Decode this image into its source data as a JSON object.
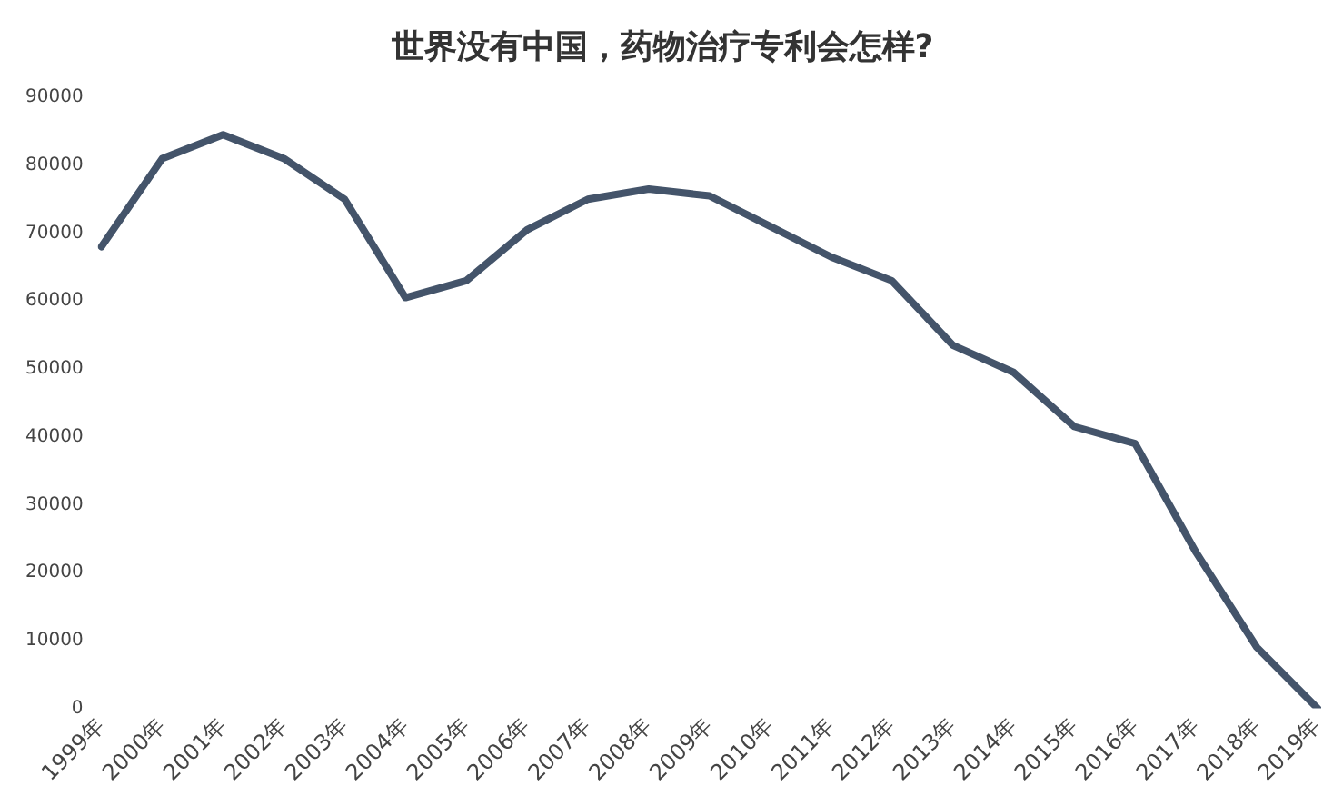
{
  "chart_data": {
    "type": "line",
    "title": "世界没有中国，药物治疗专利会怎样?",
    "categories": [
      "1999年",
      "2000年",
      "2001年",
      "2002年",
      "2003年",
      "2004年",
      "2005年",
      "2006年",
      "2007年",
      "2008年",
      "2009年",
      "2010年",
      "2011年",
      "2012年",
      "2013年",
      "2014年",
      "2015年",
      "2016年",
      "2017年",
      "2018年",
      "2019年"
    ],
    "series": [
      {
        "color": "#44546a",
        "values": [
          68000,
          81000,
          84500,
          81000,
          75000,
          60500,
          63000,
          70500,
          75000,
          76500,
          75500,
          71000,
          66500,
          63000,
          53500,
          49500,
          41500,
          39000,
          23000,
          9000,
          0
        ]
      }
    ],
    "ylim": [
      0,
      90000
    ],
    "yticks": [
      0,
      10000,
      20000,
      30000,
      40000,
      50000,
      60000,
      70000,
      80000,
      90000
    ],
    "grid": false,
    "legend": false,
    "marker": "none",
    "line_style": "solid"
  }
}
